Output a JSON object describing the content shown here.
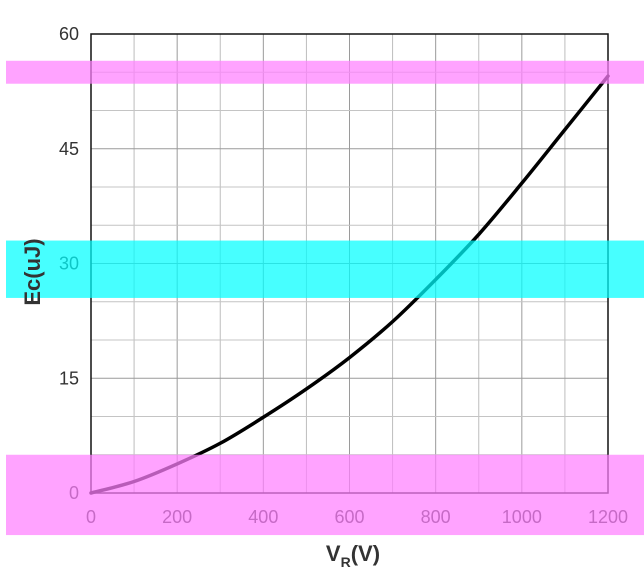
{
  "chart_data": {
    "type": "line",
    "title": "",
    "xlabel": {
      "main": "V",
      "sub": "R",
      "unit": "(V)"
    },
    "ylabel": "Ec(uJ)",
    "xlim": [
      0,
      1200
    ],
    "ylim": [
      0,
      60
    ],
    "xticks": [
      0,
      200,
      400,
      600,
      800,
      1000,
      1200
    ],
    "yticks": [
      0,
      15,
      30,
      45,
      60
    ],
    "grid": true,
    "minor_grid": true,
    "legend": "none",
    "line_color": "#000000",
    "series": [
      {
        "name": "",
        "x": [
          0,
          100,
          200,
          300,
          400,
          500,
          600,
          700,
          800,
          900,
          1000,
          1100,
          1200
        ],
        "y": [
          0,
          1.5,
          3.8,
          6.5,
          9.9,
          13.6,
          17.7,
          22.4,
          27.9,
          33.8,
          40.5,
          47.5,
          54.5
        ]
      }
    ],
    "highlight_bands": [
      {
        "color": "#ff80ff",
        "y_range": [
          53.5,
          56.5
        ]
      },
      {
        "color": "#00ffff",
        "y_range": [
          25.5,
          33
        ]
      },
      {
        "color": "#ff80ff",
        "y_range": [
          -5.5,
          5
        ]
      }
    ]
  }
}
